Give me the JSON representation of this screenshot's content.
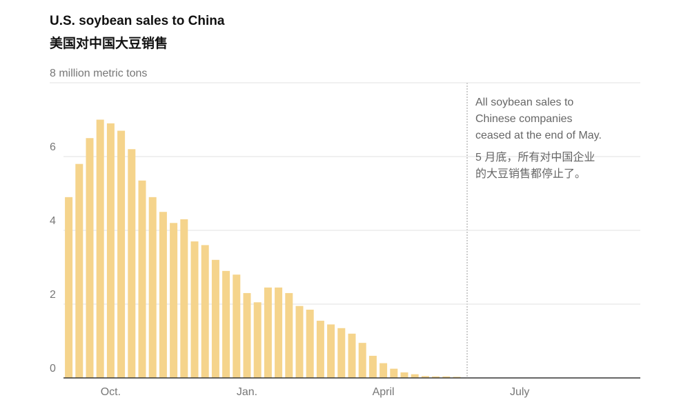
{
  "chart_data": {
    "type": "bar",
    "title": "U.S. soybean sales to China",
    "subtitle": "美国对中国大豆销售",
    "annotation": [
      "All soybean sales to",
      "Chinese companies",
      "ceased at the end of May.",
      "5 月底，所有对中国企业",
      "的大豆销售都停止了。"
    ],
    "categories": [
      null,
      null,
      null,
      null,
      "Oct.",
      null,
      null,
      null,
      null,
      null,
      null,
      null,
      null,
      null,
      null,
      null,
      null,
      "Jan.",
      null,
      null,
      null,
      null,
      null,
      null,
      null,
      null,
      null,
      null,
      null,
      null,
      "April",
      null,
      null,
      null,
      null,
      null,
      null,
      null,
      null,
      null,
      null,
      null,
      null,
      "July",
      null,
      null,
      null,
      null,
      null,
      null,
      null,
      null,
      null,
      null,
      null
    ],
    "values": [
      4.9,
      5.8,
      6.5,
      7.0,
      6.9,
      6.7,
      6.2,
      5.35,
      4.9,
      4.5,
      4.2,
      4.3,
      3.7,
      3.6,
      3.2,
      2.9,
      2.8,
      2.3,
      2.05,
      2.45,
      2.45,
      2.3,
      1.95,
      1.85,
      1.55,
      1.45,
      1.35,
      1.2,
      0.95,
      0.6,
      0.4,
      0.25,
      0.15,
      0.1,
      0.05,
      0.04,
      0.04,
      0.03,
      null,
      null,
      null,
      null,
      null,
      null,
      null,
      null,
      null,
      null,
      null,
      null,
      null,
      null,
      null,
      null,
      null
    ],
    "color": "#f5d48c",
    "ylim": [
      0,
      8
    ],
    "yticks": [
      0,
      2,
      4,
      6,
      {
        "value": 8,
        "label": "8 million metric tons"
      }
    ],
    "grid": true
  }
}
